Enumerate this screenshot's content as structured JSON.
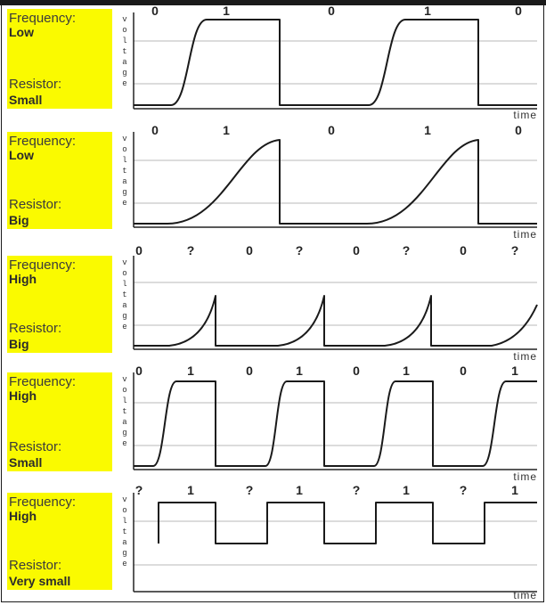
{
  "axis": {
    "y_label": "voltage",
    "x_label": "time"
  },
  "panels": [
    {
      "frequency_label": "Frequency:",
      "frequency": "Low",
      "resistor_label": "Resistor:",
      "resistor": "Small",
      "bits": [
        "0",
        "1",
        "0",
        "1",
        "0"
      ],
      "curve": "low-small"
    },
    {
      "frequency_label": "Frequency:",
      "frequency": "Low",
      "resistor_label": "Resistor:",
      "resistor": "Big",
      "bits": [
        "0",
        "1",
        "0",
        "1",
        "0"
      ],
      "curve": "low-big"
    },
    {
      "frequency_label": "Frequency:",
      "frequency": "High",
      "resistor_label": "Resistor:",
      "resistor": "Big",
      "bits": [
        "0",
        "?",
        "0",
        "?",
        "0",
        "?",
        "0",
        "?"
      ],
      "curve": "high-big"
    },
    {
      "frequency_label": "Frequency:",
      "frequency": "High",
      "resistor_label": "Resistor:",
      "resistor": "Small",
      "bits": [
        "0",
        "1",
        "0",
        "1",
        "0",
        "1",
        "0",
        "1"
      ],
      "curve": "high-small"
    },
    {
      "frequency_label": "Frequency:",
      "frequency": "High",
      "resistor_label": "Resistor:",
      "resistor": "Very small",
      "bits": [
        "?",
        "1",
        "?",
        "1",
        "?",
        "1",
        "?",
        "1"
      ],
      "curve": "high-verysmall"
    }
  ],
  "colors": {
    "label_fill": "#fafa00",
    "waveform": "#1a1a1a",
    "axis": "#222222",
    "gridline": "#b8b8b8"
  }
}
